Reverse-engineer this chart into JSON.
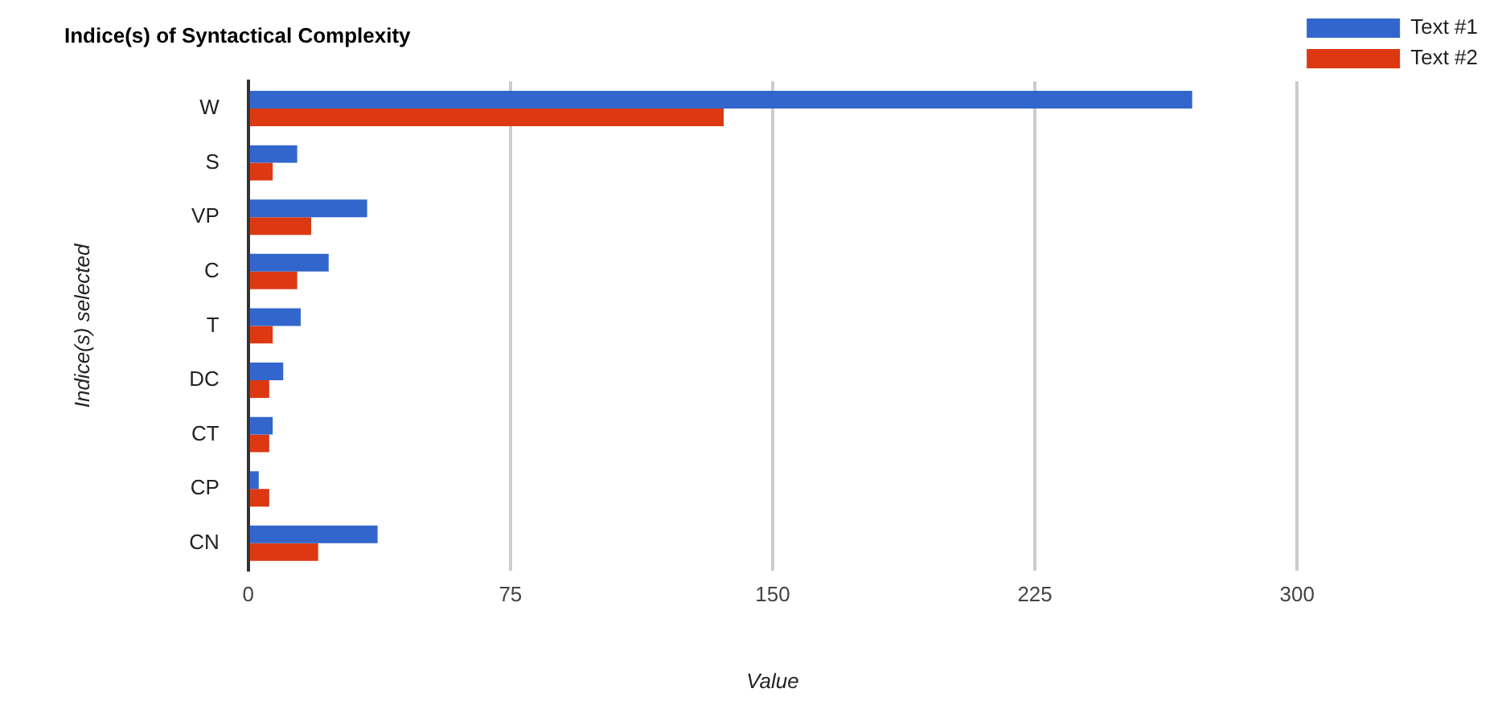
{
  "chart_data": {
    "type": "bar",
    "orientation": "horizontal",
    "title": "Indice(s) of Syntactical Complexity",
    "xlabel": "Value",
    "ylabel": "Indice(s) selected",
    "categories": [
      "W",
      "S",
      "VP",
      "C",
      "T",
      "DC",
      "CT",
      "CP",
      "CN"
    ],
    "series": [
      {
        "name": "Text #1",
        "color": "#3366cc",
        "values": [
          270,
          14,
          34,
          23,
          15,
          10,
          7,
          3,
          37
        ]
      },
      {
        "name": "Text #2",
        "color": "#dc3912",
        "values": [
          136,
          7,
          18,
          14,
          7,
          6,
          6,
          6,
          20
        ]
      }
    ],
    "xlim": [
      0,
      300
    ],
    "xticks": [
      0,
      75,
      150,
      225,
      300
    ],
    "grid": "x",
    "legend": "top right"
  }
}
